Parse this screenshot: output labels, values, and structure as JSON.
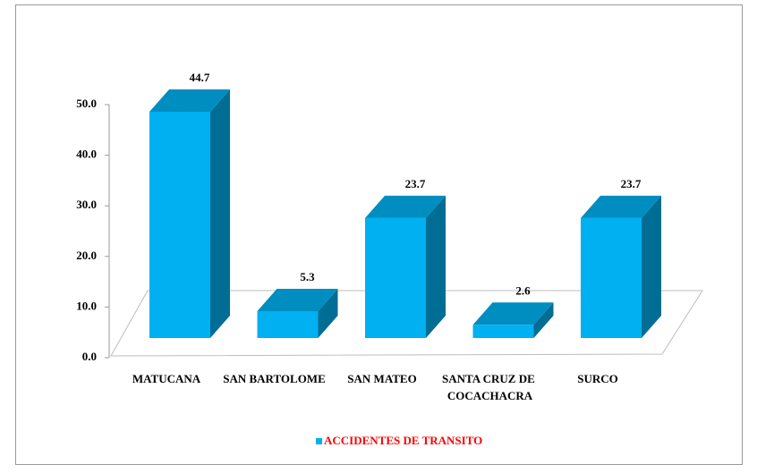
{
  "chart_data": {
    "type": "bar",
    "categories": [
      "MATUCANA",
      "SAN BARTOLOME",
      "SAN MATEO",
      "SANTA CRUZ DE COCACHACRA",
      "SURCO"
    ],
    "series": [
      {
        "name": "ACCIDENTES DE TRANSITO",
        "color": "#00b0f0",
        "values": [
          44.7,
          5.3,
          23.7,
          2.6,
          23.7
        ]
      }
    ],
    "ylim": [
      0,
      50
    ],
    "yticks": [
      {
        "value": 0,
        "label": "0.0"
      },
      {
        "value": 10,
        "label": "10.0"
      },
      {
        "value": 20,
        "label": "20.0"
      },
      {
        "value": 30,
        "label": "30.0"
      },
      {
        "value": 40,
        "label": "40.0"
      },
      {
        "value": 50,
        "label": "50.0"
      }
    ],
    "legend": "bottom"
  }
}
